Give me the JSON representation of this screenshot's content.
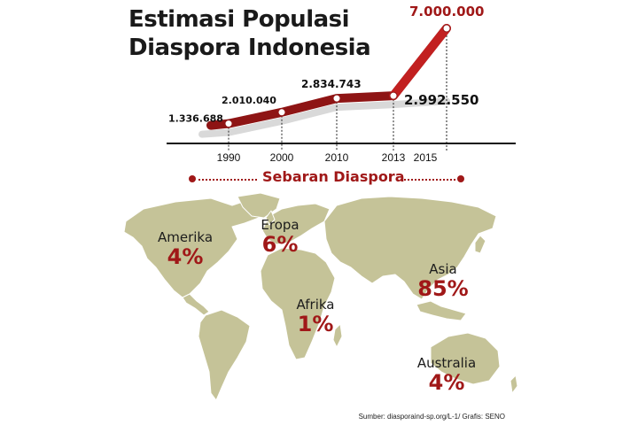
{
  "title_line1": "Estimasi Populasi",
  "title_line2": "Diaspora Indonesia",
  "chart_data": {
    "type": "line",
    "x": [
      "1990",
      "2000",
      "2010",
      "2013",
      "2015"
    ],
    "values": [
      1336688,
      2010040,
      2834743,
      2992550,
      7000000
    ],
    "value_labels": [
      "1.336.688",
      "2.010.040",
      "2.834.743",
      "2.992.550",
      "7.000.000"
    ],
    "xlabel": "",
    "ylabel": "",
    "grid": false,
    "colors": {
      "line": "#8e1414",
      "highlight": "#c22020",
      "shadow": "#d9d9d9"
    }
  },
  "map_section": {
    "header": "Sebaran Diaspora",
    "map_color": "#c5c398",
    "regions": [
      {
        "name": "Amerika",
        "percent": "4%"
      },
      {
        "name": "Eropa",
        "percent": "6%"
      },
      {
        "name": "Afrika",
        "percent": "1%"
      },
      {
        "name": "Asia",
        "percent": "85%"
      },
      {
        "name": "Australia",
        "percent": "4%"
      }
    ]
  },
  "source": "Sumber: diasporaind-sp.org/L-1/ Grafis: SENO"
}
